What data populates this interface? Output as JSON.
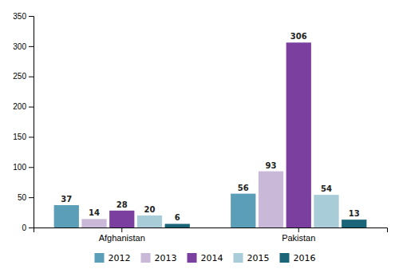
{
  "chart_data": {
    "type": "bar",
    "categories": [
      "Afghanistan",
      "Pakistan"
    ],
    "series": [
      {
        "name": "2012",
        "color": "#5b9eb8",
        "values": [
          37,
          56
        ]
      },
      {
        "name": "2013",
        "color": "#c9b8d8",
        "values": [
          14,
          93
        ]
      },
      {
        "name": "2014",
        "color": "#7b3fa0",
        "values": [
          28,
          306
        ]
      },
      {
        "name": "2015",
        "color": "#a8ccd8",
        "values": [
          20,
          54
        ]
      },
      {
        "name": "2016",
        "color": "#1a6678",
        "values": [
          6,
          13
        ]
      }
    ],
    "ylim": [
      0,
      350
    ],
    "yticks": [
      0,
      50,
      100,
      150,
      200,
      250,
      300,
      350
    ],
    "grid": false,
    "legend": "bottom",
    "data_labels": true
  }
}
